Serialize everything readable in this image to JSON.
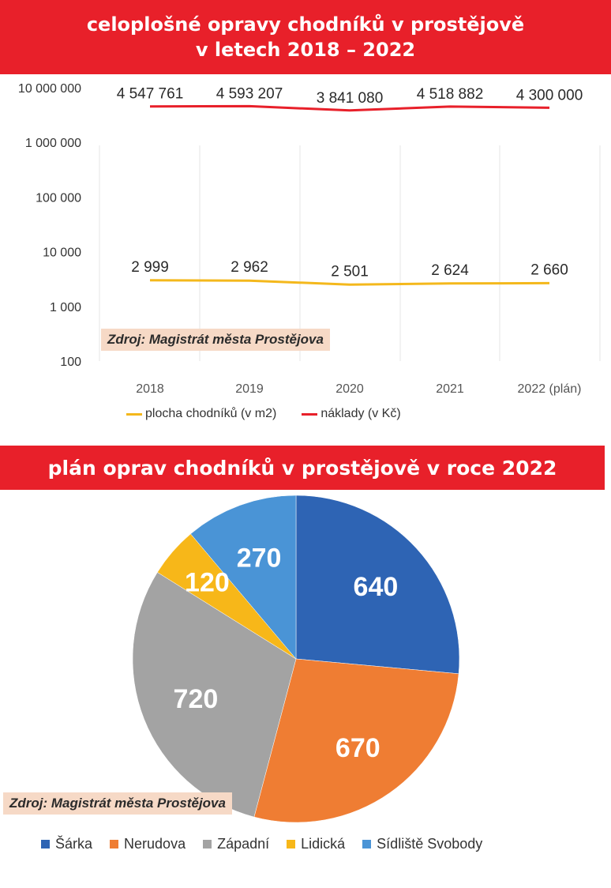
{
  "line_chart": {
    "title_line1": "celoplošné opravy chodníků v prostějově",
    "title_line2": "v letech 2018 – 2022",
    "source": "Zdroj: Magistrát města Prostějova",
    "legend": [
      {
        "label": "plocha chodníků (v m2)",
        "color": "#f4b81c"
      },
      {
        "label": "náklady (v Kč)",
        "color": "#e8202a"
      }
    ],
    "y_tick_labels": [
      "100",
      "1 000",
      "10 000",
      "100 000",
      "1 000 000",
      "10 000 000"
    ],
    "x_tick_labels": [
      "2018",
      "2019",
      "2020",
      "2021",
      "2022 (plán)"
    ],
    "series_value_labels": {
      "costs": [
        "4 547 761",
        "4 593 207",
        "3 841 080",
        "4 518 882",
        "4 300 000"
      ],
      "area": [
        "2 999",
        "2 962",
        "2 501",
        "2 624",
        "2 660"
      ]
    }
  },
  "pie_chart": {
    "title": "plán oprav chodníků v prostějově v roce 2022",
    "source": "Zdroj: Magistrát města Prostějova",
    "legend": [
      {
        "label": "Šárka",
        "color": "#2e64b4"
      },
      {
        "label": "Nerudova",
        "color": "#ef7d33"
      },
      {
        "label": "Západní",
        "color": "#a3a3a3"
      },
      {
        "label": "Lidická",
        "color": "#f7b719"
      },
      {
        "label": "Sídliště Svobody",
        "color": "#4a94d6"
      }
    ]
  },
  "chart_data": [
    {
      "type": "line",
      "title": "celoplošné opravy chodníků v prostějově v letech 2018 – 2022",
      "categories": [
        "2018",
        "2019",
        "2020",
        "2021",
        "2022 (plán)"
      ],
      "series": [
        {
          "name": "plocha chodníků (v m2)",
          "values": [
            2999,
            2962,
            2501,
            2624,
            2660
          ],
          "color": "#f4b81c"
        },
        {
          "name": "náklady (v Kč)",
          "values": [
            4547761,
            4593207,
            3841080,
            4518882,
            4300000
          ],
          "color": "#e8202a"
        }
      ],
      "yscale": "log",
      "ylim": [
        100,
        10000000
      ],
      "grid": "vertical",
      "legend": "bottom"
    },
    {
      "type": "pie",
      "title": "plán oprav chodníků v prostějově v roce 2022",
      "labels": [
        "Šárka",
        "Nerudova",
        "Západní",
        "Lidická",
        "Sídliště Svobody"
      ],
      "values": [
        640,
        670,
        720,
        120,
        270
      ],
      "colors": [
        "#2e64b4",
        "#ef7d33",
        "#a3a3a3",
        "#f7b719",
        "#4a94d6"
      ],
      "legend": "bottom"
    }
  ]
}
